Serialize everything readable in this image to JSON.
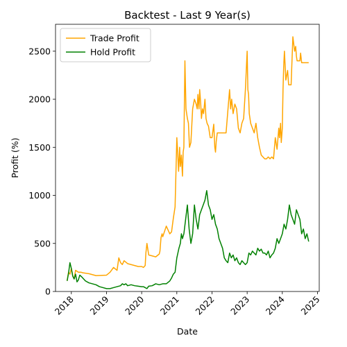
{
  "chart_data": {
    "type": "line",
    "title": "Backtest - Last 9 Year(s)",
    "xlabel": "Date",
    "ylabel": "Profit (%)",
    "xlim": [
      2017.55,
      2025.05
    ],
    "ylim": [
      0,
      2780
    ],
    "x_ticks": [
      2018,
      2019,
      2020,
      2021,
      2022,
      2023,
      2024,
      2025
    ],
    "x_tick_labels": [
      "2018",
      "2019",
      "2020",
      "2021",
      "2022",
      "2023",
      "2024",
      "2025"
    ],
    "y_ticks": [
      0,
      500,
      1000,
      1500,
      2000,
      2500
    ],
    "y_tick_labels": [
      "0",
      "500",
      "1000",
      "1500",
      "2000",
      "2500"
    ],
    "legend_position": "top-left",
    "grid": false,
    "series": [
      {
        "name": "Trade Profit",
        "color": "#FFA500",
        "x": [
          2017.88,
          2017.92,
          2017.96,
          2018.0,
          2018.04,
          2018.08,
          2018.12,
          2018.16,
          2018.2,
          2018.28,
          2018.32,
          2018.5,
          2018.7,
          2019.0,
          2019.1,
          2019.2,
          2019.3,
          2019.35,
          2019.4,
          2019.45,
          2019.5,
          2019.6,
          2019.7,
          2019.8,
          2019.9,
          2020.0,
          2020.05,
          2020.1,
          2020.12,
          2020.15,
          2020.2,
          2020.4,
          2020.5,
          2020.52,
          2020.55,
          2020.58,
          2020.6,
          2020.7,
          2020.8,
          2020.85,
          2020.9,
          2020.95,
          2021.0,
          2021.03,
          2021.05,
          2021.08,
          2021.1,
          2021.13,
          2021.16,
          2021.18,
          2021.2,
          2021.23,
          2021.26,
          2021.3,
          2021.33,
          2021.36,
          2021.4,
          2021.45,
          2021.5,
          2021.55,
          2021.58,
          2021.6,
          2021.63,
          2021.65,
          2021.68,
          2021.7,
          2021.73,
          2021.76,
          2021.8,
          2021.83,
          2021.86,
          2021.9,
          2021.95,
          2022.0,
          2022.05,
          2022.08,
          2022.1,
          2022.12,
          2022.15,
          2022.2,
          2022.3,
          2022.4,
          2022.5,
          2022.53,
          2022.56,
          2022.6,
          2022.65,
          2022.7,
          2022.75,
          2022.8,
          2022.85,
          2022.9,
          2022.95,
          2023.0,
          2023.02,
          2023.04,
          2023.06,
          2023.1,
          2023.15,
          2023.2,
          2023.25,
          2023.3,
          2023.35,
          2023.4,
          2023.45,
          2023.5,
          2023.55,
          2023.6,
          2023.65,
          2023.7,
          2023.75,
          2023.8,
          2023.85,
          2023.9,
          2023.92,
          2023.95,
          2023.97,
          2024.0,
          2024.02,
          2024.04,
          2024.06,
          2024.1,
          2024.15,
          2024.18,
          2024.2,
          2024.22,
          2024.25,
          2024.3,
          2024.35,
          2024.38,
          2024.4,
          2024.42,
          2024.45,
          2024.5,
          2024.52,
          2024.55,
          2024.6,
          2024.65,
          2024.7,
          2024.73,
          2024.75
        ],
        "y": [
          110,
          200,
          180,
          240,
          160,
          130,
          220,
          210,
          200,
          200,
          195,
          185,
          165,
          170,
          200,
          250,
          220,
          350,
          300,
          280,
          320,
          290,
          280,
          270,
          260,
          260,
          250,
          270,
          400,
          500,
          380,
          360,
          390,
          420,
          560,
          600,
          570,
          680,
          600,
          620,
          760,
          880,
          1600,
          1400,
          1250,
          1500,
          1300,
          1420,
          1200,
          1450,
          1500,
          2400,
          1900,
          1800,
          1750,
          1500,
          1550,
          1900,
          2000,
          1950,
          1900,
          2050,
          1900,
          2100,
          1950,
          1800,
          1900,
          1850,
          2000,
          1800,
          1750,
          1720,
          1600,
          1600,
          1740,
          1500,
          1450,
          1560,
          1650,
          1650,
          1650,
          1650,
          2100,
          1900,
          2000,
          1850,
          1950,
          1900,
          1700,
          1650,
          1750,
          1800,
          2100,
          2500,
          2100,
          2050,
          1850,
          1750,
          1700,
          1650,
          1750,
          1600,
          1500,
          1420,
          1400,
          1380,
          1380,
          1400,
          1380,
          1400,
          1380,
          1600,
          1480,
          1700,
          1600,
          1750,
          1550,
          1700,
          2100,
          2350,
          2500,
          2200,
          2300,
          2150,
          2150,
          2150,
          2150,
          2650,
          2500,
          2550,
          2450,
          2400,
          2400,
          2400,
          2480,
          2380,
          2380,
          2380,
          2380,
          2380,
          2380
        ]
      },
      {
        "name": "Hold Profit",
        "color": "#008000",
        "x": [
          2017.88,
          2017.92,
          2017.96,
          2018.0,
          2018.04,
          2018.08,
          2018.12,
          2018.16,
          2018.2,
          2018.24,
          2018.3,
          2018.4,
          2018.5,
          2018.6,
          2018.7,
          2018.8,
          2018.9,
          2019.0,
          2019.1,
          2019.2,
          2019.3,
          2019.4,
          2019.45,
          2019.5,
          2019.55,
          2019.6,
          2019.7,
          2019.8,
          2019.9,
          2020.0,
          2020.05,
          2020.1,
          2020.15,
          2020.2,
          2020.3,
          2020.4,
          2020.5,
          2020.6,
          2020.7,
          2020.8,
          2020.85,
          2020.9,
          2020.95,
          2021.0,
          2021.03,
          2021.06,
          2021.1,
          2021.13,
          2021.16,
          2021.2,
          2021.25,
          2021.3,
          2021.35,
          2021.4,
          2021.45,
          2021.5,
          2021.55,
          2021.6,
          2021.65,
          2021.7,
          2021.75,
          2021.8,
          2021.85,
          2021.9,
          2021.95,
          2022.0,
          2022.05,
          2022.1,
          2022.15,
          2022.2,
          2022.25,
          2022.3,
          2022.35,
          2022.4,
          2022.45,
          2022.5,
          2022.55,
          2022.6,
          2022.65,
          2022.7,
          2022.75,
          2022.8,
          2022.85,
          2022.9,
          2022.95,
          2023.0,
          2023.05,
          2023.1,
          2023.15,
          2023.2,
          2023.25,
          2023.3,
          2023.35,
          2023.4,
          2023.45,
          2023.5,
          2023.55,
          2023.6,
          2023.65,
          2023.7,
          2023.75,
          2023.8,
          2023.85,
          2023.9,
          2023.95,
          2024.0,
          2024.05,
          2024.1,
          2024.15,
          2024.2,
          2024.25,
          2024.3,
          2024.35,
          2024.4,
          2024.45,
          2024.5,
          2024.55,
          2024.6,
          2024.65,
          2024.7,
          2024.75
        ],
        "y": [
          110,
          190,
          300,
          240,
          160,
          130,
          180,
          100,
          120,
          170,
          150,
          110,
          90,
          80,
          70,
          50,
          40,
          30,
          30,
          40,
          50,
          60,
          80,
          70,
          80,
          60,
          70,
          60,
          55,
          50,
          50,
          40,
          30,
          55,
          60,
          80,
          70,
          80,
          80,
          110,
          140,
          180,
          200,
          350,
          400,
          450,
          500,
          600,
          550,
          600,
          750,
          900,
          650,
          500,
          600,
          900,
          750,
          650,
          800,
          850,
          900,
          950,
          1050,
          900,
          850,
          750,
          800,
          700,
          650,
          550,
          500,
          450,
          350,
          320,
          300,
          400,
          350,
          380,
          320,
          350,
          300,
          280,
          320,
          300,
          280,
          300,
          400,
          380,
          420,
          400,
          380,
          450,
          420,
          440,
          400,
          400,
          380,
          420,
          350,
          380,
          400,
          450,
          550,
          500,
          550,
          600,
          700,
          650,
          750,
          900,
          800,
          750,
          700,
          850,
          800,
          750,
          600,
          650,
          550,
          600,
          520
        ]
      }
    ]
  }
}
